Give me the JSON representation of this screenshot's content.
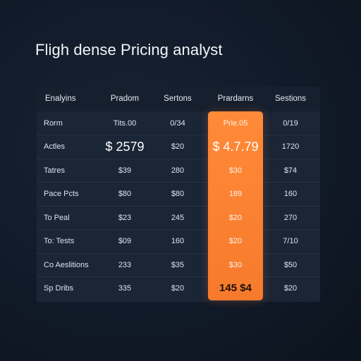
{
  "page": {
    "title": "Fligh dense Pricing analyst"
  },
  "table": {
    "headers": [
      "Enalyins",
      "Pradom",
      "Sertons",
      "Prardarns",
      "Sestions"
    ],
    "rows": [
      {
        "label": "Rorm",
        "cells": [
          "Tits.00",
          "0/34",
          "Prie.05",
          "0/19"
        ]
      },
      {
        "label": "Actles",
        "cells": [
          "$ 2579",
          "$20",
          "$ 4.7.79",
          "1720"
        ]
      },
      {
        "label": "Tatres",
        "cells": [
          "$39",
          "280",
          "$30",
          "$74"
        ]
      },
      {
        "label": "Pace Pcts",
        "cells": [
          "$80",
          "$80",
          "189",
          "160"
        ]
      },
      {
        "label": "To Peal",
        "cells": [
          "$23",
          "245",
          "$20",
          "270"
        ]
      },
      {
        "label": "To: Tests",
        "cells": [
          "$09",
          "160",
          "$20",
          "7/10"
        ]
      },
      {
        "label": "Co Aeslitions",
        "cells": [
          "233",
          "$35",
          "$30",
          "$50"
        ]
      },
      {
        "label": "Sp Dribs",
        "cells": [
          "335",
          "$20",
          "145 $4",
          "$20"
        ]
      }
    ]
  },
  "colors": {
    "background": "#111a28",
    "table_header": "#151f2e",
    "table_body": "#1a2536",
    "accent": "#f77a2c",
    "text": "#e8ecf2"
  }
}
